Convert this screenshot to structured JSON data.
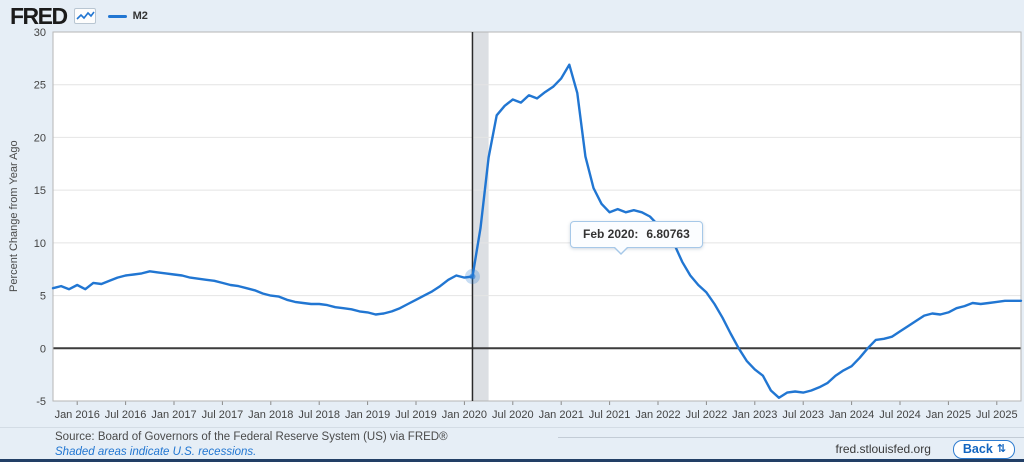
{
  "header": {
    "logo_text": "FRED",
    "sparkline_icon": "sparkline-icon"
  },
  "chart_data": {
    "type": "line",
    "series_name": "M2",
    "ylabel": "Percent Change from Year Ago",
    "line_color": "#2176d2",
    "grid": true,
    "ylim": [
      -5,
      30
    ],
    "y_ticks": [
      30,
      25,
      20,
      15,
      10,
      5,
      0,
      -5
    ],
    "x_start": "Oct 2015",
    "frequency": "monthly",
    "x_tick_first_index": 3,
    "x_tick_step": 6,
    "x_tick_labels": [
      "Jan 2016",
      "Jul 2016",
      "Jan 2017",
      "Jul 2017",
      "Jan 2018",
      "Jul 2018",
      "Jan 2019",
      "Jul 2019",
      "Jan 2020",
      "Jul 2020",
      "Jan 2021",
      "Jul 2021",
      "Jan 2022",
      "Jul 2022",
      "Jan 2023",
      "Jul 2023",
      "Jan 2024",
      "Jul 2024",
      "Jan 2025",
      "Jul 2025"
    ],
    "values": [
      5.7,
      5.9,
      5.6,
      6.0,
      5.6,
      6.2,
      6.1,
      6.4,
      6.7,
      6.9,
      7.0,
      7.1,
      7.3,
      7.2,
      7.1,
      7.0,
      6.9,
      6.7,
      6.6,
      6.5,
      6.4,
      6.2,
      6.0,
      5.9,
      5.7,
      5.5,
      5.2,
      5.0,
      4.9,
      4.6,
      4.4,
      4.3,
      4.2,
      4.2,
      4.1,
      3.9,
      3.8,
      3.7,
      3.5,
      3.4,
      3.2,
      3.3,
      3.5,
      3.8,
      4.2,
      4.6,
      5.0,
      5.4,
      5.9,
      6.5,
      6.9,
      6.7,
      6.80763,
      11.4,
      18.1,
      22.1,
      23.0,
      23.6,
      23.3,
      24.0,
      23.7,
      24.3,
      24.8,
      25.6,
      26.9,
      24.2,
      18.2,
      15.2,
      13.7,
      12.9,
      13.2,
      12.9,
      13.1,
      12.9,
      12.5,
      11.7,
      11.0,
      9.9,
      8.2,
      6.9,
      6.0,
      5.3,
      4.2,
      2.9,
      1.4,
      0.0,
      -1.2,
      -2.0,
      -2.6,
      -4.0,
      -4.7,
      -4.2,
      -4.1,
      -4.2,
      -4.0,
      -3.7,
      -3.3,
      -2.6,
      -2.1,
      -1.7,
      -0.9,
      0.0,
      0.8,
      0.9,
      1.1,
      1.6,
      2.1,
      2.6,
      3.1,
      3.3,
      3.2,
      3.4,
      3.8,
      4.0,
      4.3,
      4.2,
      4.3,
      4.4,
      4.5,
      4.5,
      4.5
    ],
    "zero_line": true,
    "recession_band_indices": [
      52,
      54
    ],
    "recession_color": "#dcdfe3",
    "crosshair_index": 52,
    "marker": {
      "index": 52,
      "value": 6.80763
    }
  },
  "tooltip": {
    "date_label": "Feb 2020:",
    "value": "6.80763"
  },
  "footer": {
    "source_line": "Source: Board of Governors of the Federal Reserve System (US) via FRED®",
    "note_line": "Shaded areas indicate U.S. recessions.",
    "site": "fred.stlouisfed.org",
    "back_label": "Back",
    "back_icon_glyph": "⇅"
  }
}
